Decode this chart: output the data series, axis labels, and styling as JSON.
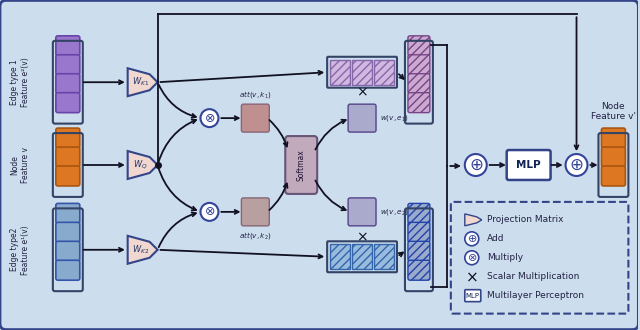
{
  "bg_color": "#ccdded",
  "border_color": "#334488",
  "purple_color": "#9977cc",
  "orange_color": "#dd7722",
  "blue_color": "#88aacc",
  "pink_proj_color": "#f0d8d0",
  "att1_color": "#c09090",
  "att2_color": "#b8a0a0",
  "softmax_color": "#c0aabb",
  "lav_color": "#aaaacc",
  "hatch1_color": "#d0b8e0",
  "hatch1_ec": "#8866aa",
  "hatch2_color": "#99bbdd",
  "hatch2_ec": "#3366aa",
  "rg1_color": "#ccaad0",
  "rg1_ec": "#774488",
  "rg2_color": "#99aacc",
  "rg2_ec": "#2244aa",
  "mlp_bg": "#ffffff",
  "add_bg": "#ffffff",
  "circ_ec": "#334499",
  "arrow_color": "#111122",
  "label_color": "#222244",
  "edge1_label": "Edge type 1\nFeature e²(v)",
  "node_label": "Node\nFeature v",
  "edge2_label": "Edge type2\nFeature e¹(v)",
  "out_label": "Node\nFeature v'"
}
